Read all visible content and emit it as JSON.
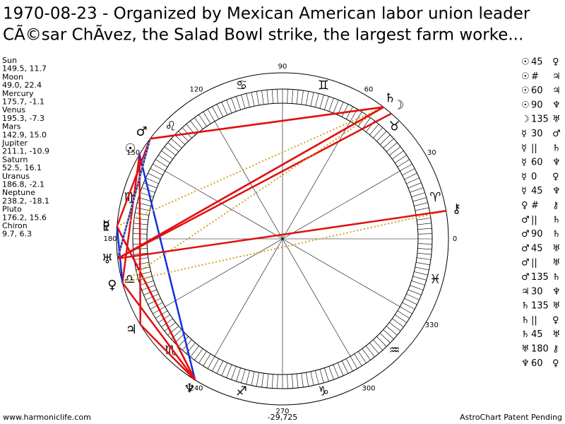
{
  "title": [
    "1970-08-23 - Organized by Mexican American labor union leader",
    "CÃ©sar ChÃ­vez, the Salad Bowl strike, the largest farm worke..."
  ],
  "planets": [
    {
      "name": "Sun",
      "glyph": "☉",
      "coords": "149.5, 11.7"
    },
    {
      "name": "Moon",
      "glyph": "☽",
      "coords": "49.0, 22.4"
    },
    {
      "name": "Mercury",
      "glyph": "☿",
      "coords": "175.7, -1.1"
    },
    {
      "name": "Venus",
      "glyph": "♀",
      "coords": "195.3, -7.3"
    },
    {
      "name": "Mars",
      "glyph": "♂",
      "coords": "142.9, 15.0"
    },
    {
      "name": "Jupiter",
      "glyph": "♃",
      "coords": "211.1, -10.9"
    },
    {
      "name": "Saturn",
      "glyph": "♄",
      "coords": "52.5, 16.1"
    },
    {
      "name": "Uranus",
      "glyph": "♅",
      "coords": "186.8, -2.1"
    },
    {
      "name": "Neptune",
      "glyph": "♆",
      "coords": "238.2, -18.1"
    },
    {
      "name": "Pluto",
      "glyph": "♇",
      "coords": "176.2, 15.6"
    },
    {
      "name": "Chiron",
      "glyph": "⚷",
      "coords": "9.7, 6.3"
    }
  ],
  "aspects": [
    {
      "a": "☉",
      "asp": "45",
      "b": "♀"
    },
    {
      "a": "☉",
      "asp": "#",
      "b": "♃"
    },
    {
      "a": "☉",
      "asp": "60",
      "b": "♃"
    },
    {
      "a": "☉",
      "asp": "90",
      "b": "♆"
    },
    {
      "a": "☽",
      "asp": "135",
      "b": "♅"
    },
    {
      "a": "☿",
      "asp": "30",
      "b": "♂"
    },
    {
      "a": "☿",
      "asp": "||",
      "b": "♄"
    },
    {
      "a": "☿",
      "asp": "60",
      "b": "♆"
    },
    {
      "a": "☿",
      "asp": "0",
      "b": "♀"
    },
    {
      "a": "☿",
      "asp": "45",
      "b": "♆"
    },
    {
      "a": "♀",
      "asp": "#",
      "b": "⚷"
    },
    {
      "a": "♂",
      "asp": "||",
      "b": "♄"
    },
    {
      "a": "♂",
      "asp": "90",
      "b": "♄"
    },
    {
      "a": "♂",
      "asp": "45",
      "b": "♅"
    },
    {
      "a": "♂",
      "asp": "||",
      "b": "♅"
    },
    {
      "a": "♂",
      "asp": "135",
      "b": "♄"
    },
    {
      "a": "♃",
      "asp": "30",
      "b": "♆"
    },
    {
      "a": "♄",
      "asp": "135",
      "b": "♅"
    },
    {
      "a": "♄",
      "asp": "||",
      "b": "♀"
    },
    {
      "a": "♄",
      "asp": "45",
      "b": "♅"
    },
    {
      "a": "♅",
      "asp": "180",
      "b": "⚷"
    },
    {
      "a": "♆",
      "asp": "60",
      "b": "♀"
    }
  ],
  "signs": [
    "♈",
    "♉",
    "♊",
    "♋",
    "♌",
    "♍",
    "♎",
    "♏",
    "♐",
    "♑",
    "♒",
    "♓"
  ],
  "degree_labels": [
    0,
    30,
    60,
    90,
    120,
    150,
    180,
    240,
    270,
    300,
    330
  ],
  "footer": {
    "left": "www.harmoniclife.com",
    "center": "-29,725",
    "right": "AstroChart Patent Pending"
  }
}
